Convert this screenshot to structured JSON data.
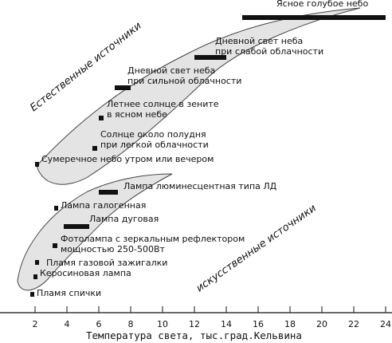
{
  "x_axis": {
    "label": "Температура света, тыс.град.Кельвина",
    "min": 1.5,
    "max": 24,
    "ticks": [
      2,
      4,
      6,
      8,
      10,
      12,
      14,
      16,
      18,
      20,
      22,
      24
    ]
  },
  "groups": [
    {
      "label": "Естественные источники"
    },
    {
      "label": "искусственные источники"
    }
  ],
  "sources": [
    {
      "lines": [
        "Ясное голубое небо"
      ],
      "range": [
        15,
        24
      ],
      "group": "natural"
    },
    {
      "lines": [
        "Дневной свет неба",
        "при слабой облачности"
      ],
      "range": [
        12,
        14
      ],
      "group": "natural"
    },
    {
      "lines": [
        "Дневной свет неба",
        "при сильной облачности"
      ],
      "range": [
        7,
        8
      ],
      "group": "natural"
    },
    {
      "lines": [
        "Летнее солнце в зените",
        "в ясном небе"
      ],
      "range": [
        6,
        6.3
      ],
      "group": "natural"
    },
    {
      "lines": [
        "Солнце около полудня",
        "при легкой облачности"
      ],
      "range": [
        5.6,
        5.9
      ],
      "group": "natural"
    },
    {
      "lines": [
        "Сумеречное небо утром или вечером"
      ],
      "range": [
        2,
        2.2
      ],
      "group": "natural"
    },
    {
      "lines": [
        "Лампа люминесцентная типа ЛД"
      ],
      "range": [
        6,
        7.2
      ],
      "group": "artificial"
    },
    {
      "lines": [
        "Лампа галогенная"
      ],
      "range": [
        3.2,
        3.4
      ],
      "group": "artificial"
    },
    {
      "lines": [
        "Лампа дуговая"
      ],
      "range": [
        3.8,
        5.4
      ],
      "group": "artificial"
    },
    {
      "lines": [
        "Фотолампа с зеркальным рефлектором",
        "мощностью 250-500Вт"
      ],
      "range": [
        3.1,
        3.4
      ],
      "group": "artificial"
    },
    {
      "lines": [
        "Пламя газовой зажигалки"
      ],
      "range": [
        2.0,
        2.05
      ],
      "group": "artificial"
    },
    {
      "lines": [
        "Керосиновая лампа"
      ],
      "range": [
        1.9,
        2.1
      ],
      "group": "artificial"
    },
    {
      "lines": [
        "Пламя спички"
      ],
      "range": [
        1.7,
        1.9
      ],
      "group": "artificial"
    }
  ]
}
